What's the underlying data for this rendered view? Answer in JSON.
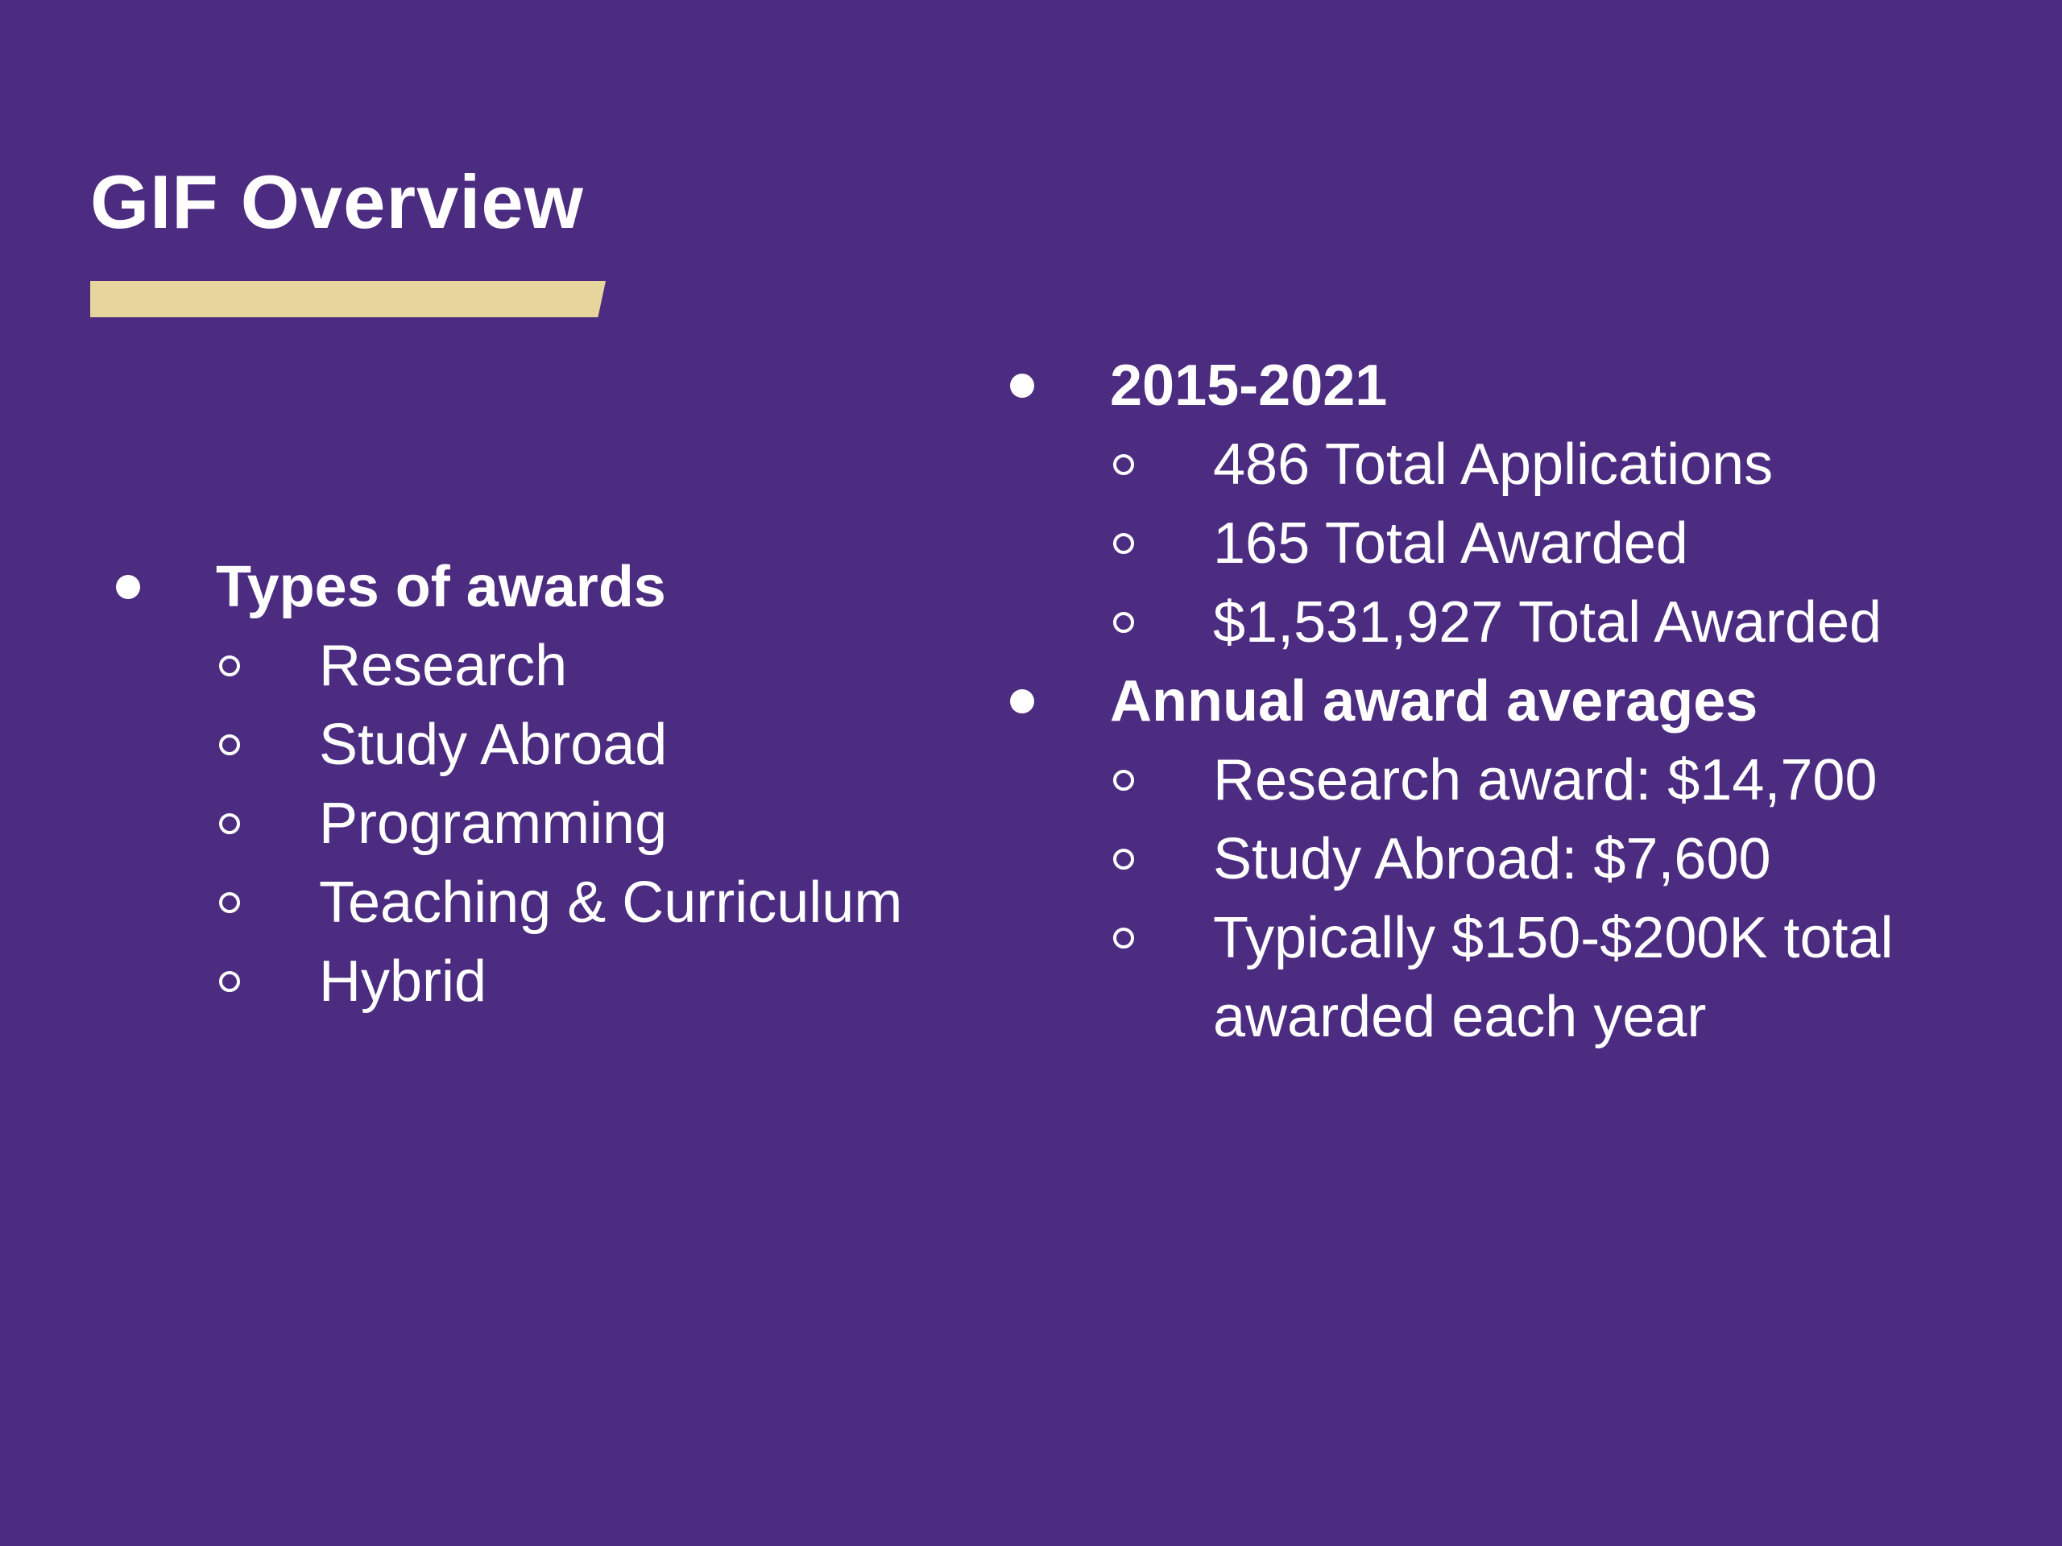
{
  "slide": {
    "title": "GIF Overview",
    "colors": {
      "background": "#4b2c80",
      "accent_bar": "#e8d49d",
      "text": "#ffffff"
    }
  },
  "left_column": {
    "heading": "Types of awards",
    "items": [
      "Research",
      "Study Abroad",
      "Programming",
      "Teaching & Curriculum",
      "Hybrid"
    ]
  },
  "right_column": {
    "section1": {
      "heading": "2015-2021",
      "items": [
        "486 Total Applications",
        "165 Total Awarded",
        "$1,531,927 Total Awarded"
      ]
    },
    "section2": {
      "heading": "Annual award averages",
      "items": [
        "Research award: $14,700",
        "Study Abroad: $7,600",
        "Typically $150-$200K total awarded each year"
      ]
    }
  }
}
